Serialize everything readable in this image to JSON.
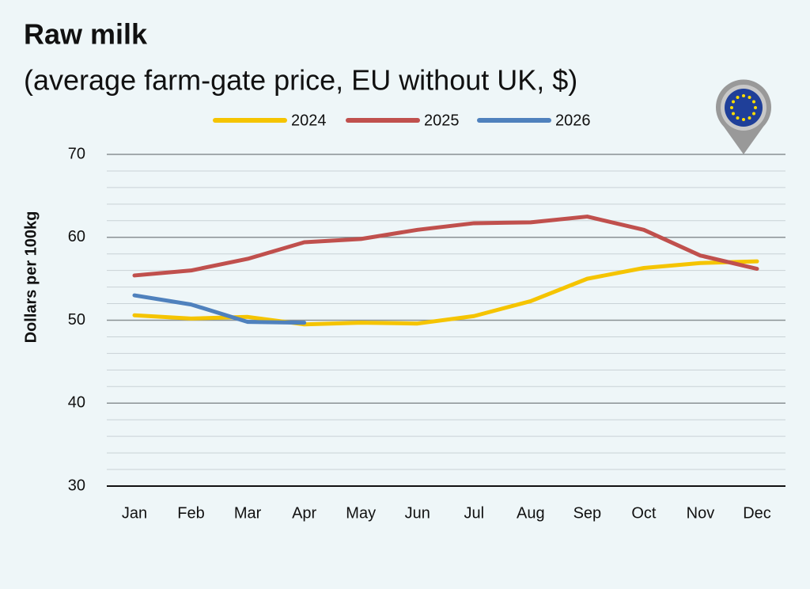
{
  "chart_data": {
    "type": "line",
    "title": "Raw milk",
    "subtitle": "(average farm-gate price, EU without UK, $)",
    "y_label": "Dollars per 100kg",
    "categories": [
      "Jan",
      "Feb",
      "Mar",
      "Apr",
      "May",
      "Jun",
      "Jul",
      "Aug",
      "Sep",
      "Oct",
      "Nov",
      "Dec"
    ],
    "series": [
      {
        "name": "2024",
        "color": "#f5c400",
        "values": [
          50.6,
          50.2,
          50.4,
          49.5,
          49.7,
          49.6,
          50.5,
          52.3,
          55.0,
          56.3,
          56.9,
          57.1
        ]
      },
      {
        "name": "2025",
        "color": "#c0504d",
        "values": [
          55.4,
          56.0,
          57.4,
          59.4,
          59.8,
          60.9,
          61.7,
          61.8,
          62.5,
          60.9,
          57.8,
          56.2
        ]
      },
      {
        "name": "2026",
        "color": "#4f81bd",
        "values": [
          53.0,
          51.9,
          49.8,
          49.7,
          null,
          null,
          null,
          null,
          null,
          null,
          null,
          null
        ]
      }
    ],
    "ylim": [
      30,
      70
    ],
    "yticks": [
      30,
      40,
      50,
      60,
      70
    ],
    "grid": true
  }
}
